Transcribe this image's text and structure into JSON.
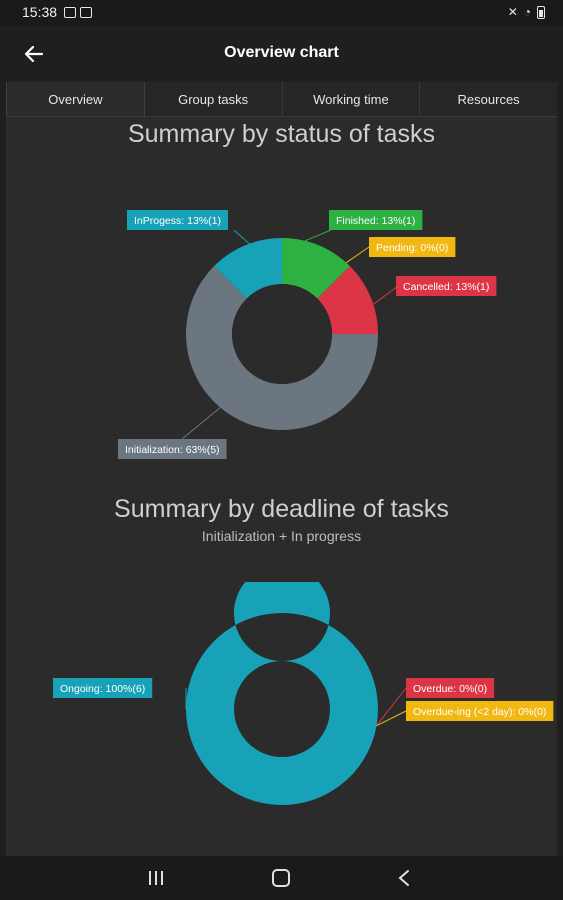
{
  "status_bar": {
    "time": "15:38"
  },
  "app_bar": {
    "title": "Overview chart",
    "back_icon": "arrow-left-icon"
  },
  "tabs": [
    {
      "label": "Overview",
      "active": true
    },
    {
      "label": "Group tasks",
      "active": false
    },
    {
      "label": "Working time",
      "active": false
    },
    {
      "label": "Resources",
      "active": false
    }
  ],
  "chart_data": [
    {
      "type": "pie",
      "donut": true,
      "title": "Summary by status of tasks",
      "slices": [
        {
          "label": "Finished: 13%(1)",
          "value": 12.5,
          "color": "#2db143"
        },
        {
          "label": "Pending: 0%(0)",
          "value": 0,
          "color": "#f0b810"
        },
        {
          "label": "Cancelled: 13%(1)",
          "value": 12.5,
          "color": "#dc3545"
        },
        {
          "label": "Initialization: 63%(5)",
          "value": 62.5,
          "color": "#6b7680"
        },
        {
          "label": "InProgess: 13%(1)",
          "value": 12.5,
          "color": "#17a2b8"
        }
      ]
    },
    {
      "type": "pie",
      "donut": true,
      "title": "Summary by deadline of tasks",
      "subtitle": "Initialization + In progress",
      "slices": [
        {
          "label": "Overdue: 0%(0)",
          "value": 0,
          "color": "#dc3545"
        },
        {
          "label": "Overdue-ing (<2 day): 0%(0)",
          "value": 0,
          "color": "#f0b810"
        },
        {
          "label": "Ongoing: 100%(6)",
          "value": 100,
          "color": "#17a2b8"
        }
      ]
    }
  ],
  "nav": {
    "recents_icon": "recents-icon",
    "home_icon": "home-icon",
    "back_icon": "nav-back-icon"
  }
}
